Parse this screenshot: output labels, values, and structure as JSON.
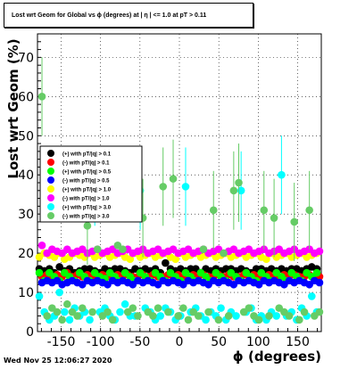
{
  "chart_data": {
    "type": "scatter",
    "title": "Lost wrt Geom for Global vs ϕ (degrees) at | η | <= 1.0 at pT > 0.11",
    "xlabel": "ϕ (degrees)",
    "ylabel": "Lost wrt Geom (%)",
    "xlim": [
      -180,
      180
    ],
    "ylim": [
      0,
      76
    ],
    "x_ticks": [
      -150,
      -100,
      -50,
      0,
      50,
      100,
      150
    ],
    "y_ticks": [
      0,
      10,
      20,
      30,
      40,
      50,
      60,
      70
    ],
    "grid": true,
    "legend_position": "left-middle",
    "series": [
      {
        "name": "(+) with pT/|q| > 0.1",
        "color": "#000000",
        "values": [
          16,
          15.5,
          16,
          15,
          16.5,
          15.5,
          16,
          15,
          15.5,
          16,
          16,
          15.5,
          15,
          16,
          15.5,
          16,
          16,
          15.5,
          15,
          16,
          15.5,
          16,
          15.5,
          16,
          15,
          17.5,
          16,
          15.5,
          16,
          15.5,
          16,
          16,
          15,
          16,
          15.5,
          16,
          15.5,
          16,
          16,
          15.5,
          16,
          15.5,
          15,
          16,
          16,
          15.5,
          16,
          15.5,
          16,
          15.5,
          16,
          16,
          15.5,
          16,
          16.5,
          16
        ]
      },
      {
        "name": "(-) with pT/|q| > 0.1",
        "color": "#ff0000",
        "values": [
          14,
          14.5,
          14,
          14.5,
          14,
          15,
          14,
          14.5,
          14,
          14.5,
          14,
          14,
          14.5,
          14,
          14,
          14.5,
          14,
          14.5,
          14,
          14,
          14.5,
          14,
          14.5,
          14,
          14,
          14.5,
          14,
          14.5,
          14,
          14,
          14.5,
          14,
          14.5,
          14,
          14,
          14.5,
          14,
          14.5,
          14,
          14,
          14.5,
          14,
          14.5,
          14,
          14,
          14.5,
          14,
          14,
          14.5,
          14,
          14.5,
          14,
          14,
          14.5,
          14,
          14
        ]
      },
      {
        "name": "(+) with pT/|q| > 0.5",
        "color": "#00ff00",
        "values": [
          15,
          13,
          15,
          14,
          13,
          15,
          14,
          13,
          15,
          14,
          13,
          15,
          14,
          13.5,
          15,
          14,
          13,
          15,
          14,
          13,
          15,
          14,
          13,
          15,
          14,
          13,
          15,
          14,
          13,
          15,
          14,
          13,
          15,
          14,
          13,
          15,
          14,
          13,
          15,
          14,
          13,
          15,
          14,
          13,
          15,
          14,
          13,
          15,
          14,
          13,
          15,
          14,
          13,
          15,
          14,
          15
        ]
      },
      {
        "name": "(-) with pT/|q| > 0.5",
        "color": "#0000ff",
        "values": [
          12.5,
          13,
          12.5,
          13,
          12,
          12.5,
          13,
          12.5,
          12,
          13,
          12.5,
          13,
          12.5,
          12,
          13,
          12.5,
          13,
          12.5,
          12,
          13,
          12.5,
          13,
          12.5,
          12,
          13,
          12.5,
          13,
          12.5,
          12,
          13,
          12.5,
          13,
          12.5,
          12,
          13,
          12.5,
          13,
          12.5,
          12,
          13,
          12.5,
          13,
          12.5,
          12,
          13,
          12.5,
          13,
          12.5,
          12,
          13,
          12.5,
          13,
          12.5,
          12,
          13,
          12.5
        ]
      },
      {
        "name": "(+) with pT/|q| > 1.0",
        "color": "#ffff00",
        "values": [
          19,
          20,
          19.5,
          19,
          20,
          18.5,
          19,
          20,
          19.5,
          19,
          20,
          19,
          19.5,
          20,
          19,
          19.5,
          20,
          19,
          18.5,
          20,
          19,
          19.5,
          20,
          19,
          19.5,
          20,
          19,
          18.5,
          20,
          19,
          19.5,
          20,
          19,
          19.5,
          20,
          19,
          19.5,
          20,
          19,
          19.5,
          20,
          19,
          19.5,
          20,
          19,
          18.5,
          20,
          19,
          19.5,
          20,
          19,
          19.5,
          20,
          19,
          19.5,
          20
        ]
      },
      {
        "name": "(-) with pT/|q| > 1.0",
        "color": "#ff00ff",
        "values": [
          22,
          20,
          21,
          20.5,
          20,
          21,
          20,
          20.5,
          21,
          20,
          20.5,
          21,
          20,
          20.5,
          21,
          20,
          20.5,
          21,
          20,
          20.5,
          21,
          20,
          20.5,
          21,
          20,
          20.5,
          21,
          20,
          20.5,
          21,
          20,
          20.5,
          21,
          20,
          20.5,
          21,
          20,
          20.5,
          21,
          20,
          20.5,
          21,
          20,
          20.5,
          21,
          20,
          20.5,
          21,
          20,
          20.5,
          21,
          20,
          20.5,
          21,
          20,
          20.5
        ]
      },
      {
        "name": "(+) with pT/|q| > 3.0",
        "color": "#00ffff",
        "values": [
          9,
          5,
          3,
          4,
          10,
          5,
          3,
          6,
          4,
          5,
          3,
          37,
          5,
          6,
          4,
          3,
          5,
          7,
          4,
          4,
          36,
          6,
          5,
          3,
          4,
          6,
          5,
          3,
          4,
          37,
          5,
          6,
          4,
          3,
          5,
          4,
          6,
          3,
          5,
          4,
          36,
          5,
          6,
          3,
          4,
          3,
          5,
          4,
          40,
          4,
          5,
          3,
          6,
          4,
          9,
          5
        ]
      },
      {
        "name": "(-) with pT/|q| > 3.0",
        "color": "#66cc66",
        "values": [
          60,
          4,
          6,
          5,
          3,
          7,
          5,
          4,
          6,
          27,
          5,
          21,
          4,
          5,
          3,
          22,
          21,
          5,
          6,
          4,
          29,
          5,
          4,
          6,
          37,
          5,
          39,
          4,
          6,
          3,
          5,
          4,
          21,
          5,
          31,
          3,
          20,
          4,
          36,
          38,
          5,
          6,
          4,
          3,
          31,
          4,
          29,
          6,
          5,
          4,
          28,
          3,
          5,
          31,
          4,
          5
        ]
      }
    ]
  },
  "footer": {
    "timestamp": "Wed Nov 25 12:06:27 2020"
  }
}
